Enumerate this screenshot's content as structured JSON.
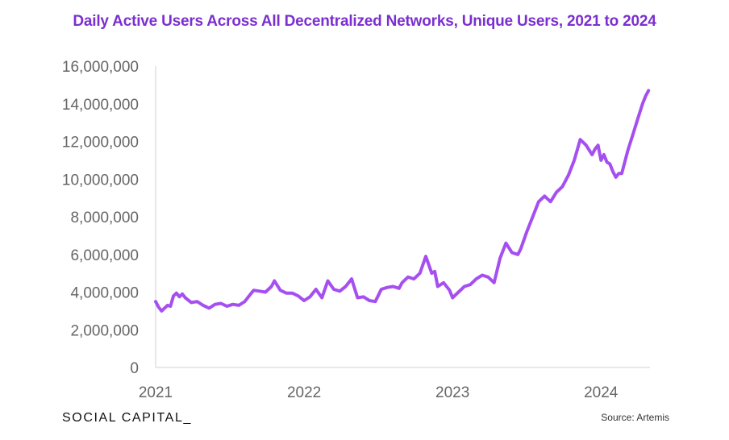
{
  "colors": {
    "accent": "#a64ff0",
    "title": "#7b2fd0",
    "axis": "#d0d0d0",
    "tick_text": "#666666"
  },
  "footer": {
    "brand": "SOCIAL CAPITAL_",
    "source": "Source: Artemis"
  },
  "chart_data": {
    "type": "line",
    "title": "Daily Active Users Across All Decentralized Networks, Unique Users, 2021 to 2024",
    "xlabel": "",
    "ylabel": "",
    "ylim": [
      0,
      16000000
    ],
    "xlim": [
      2021.0,
      2024.33
    ],
    "yticks": [
      0,
      2000000,
      4000000,
      6000000,
      8000000,
      10000000,
      12000000,
      14000000,
      16000000
    ],
    "ytick_labels": [
      "0",
      "2,000,000",
      "4,000,000",
      "6,000,000",
      "8,000,000",
      "10,000,000",
      "12,000,000",
      "14,000,000",
      "16,000,000"
    ],
    "xticks": [
      2021,
      2022,
      2023,
      2024
    ],
    "xtick_labels": [
      "2021",
      "2022",
      "2023",
      "2024"
    ],
    "grid": false,
    "series": [
      {
        "color": "#a64ff0",
        "x": [
          2021.0,
          2021.02,
          2021.04,
          2021.06,
          2021.08,
          2021.1,
          2021.12,
          2021.14,
          2021.16,
          2021.18,
          2021.2,
          2021.24,
          2021.28,
          2021.32,
          2021.36,
          2021.4,
          2021.44,
          2021.48,
          2021.52,
          2021.56,
          2021.6,
          2021.64,
          2021.66,
          2021.7,
          2021.74,
          2021.78,
          2021.8,
          2021.84,
          2021.88,
          2021.92,
          2021.96,
          2022.0,
          2022.04,
          2022.08,
          2022.12,
          2022.16,
          2022.2,
          2022.24,
          2022.28,
          2022.32,
          2022.36,
          2022.4,
          2022.44,
          2022.48,
          2022.52,
          2022.56,
          2022.6,
          2022.64,
          2022.66,
          2022.7,
          2022.74,
          2022.78,
          2022.82,
          2022.86,
          2022.88,
          2022.9,
          2022.94,
          2022.98,
          2023.0,
          2023.04,
          2023.08,
          2023.12,
          2023.16,
          2023.2,
          2023.24,
          2023.28,
          2023.32,
          2023.36,
          2023.4,
          2023.44,
          2023.46,
          2023.5,
          2023.54,
          2023.58,
          2023.62,
          2023.66,
          2023.7,
          2023.74,
          2023.78,
          2023.82,
          2023.86,
          2023.9,
          2023.94,
          2023.96,
          2023.98,
          2024.0,
          2024.02,
          2024.04,
          2024.06,
          2024.08,
          2024.1,
          2024.12,
          2024.14,
          2024.16,
          2024.18,
          2024.2,
          2024.22,
          2024.24,
          2024.26,
          2024.28,
          2024.3,
          2024.32
        ],
        "values": [
          3500000,
          3200000,
          3000000,
          3150000,
          3300000,
          3250000,
          3800000,
          3950000,
          3750000,
          3900000,
          3700000,
          3450000,
          3500000,
          3300000,
          3150000,
          3350000,
          3400000,
          3250000,
          3350000,
          3300000,
          3500000,
          3900000,
          4100000,
          4050000,
          4000000,
          4300000,
          4600000,
          4100000,
          3950000,
          3950000,
          3800000,
          3550000,
          3750000,
          4150000,
          3700000,
          4600000,
          4150000,
          4050000,
          4300000,
          4700000,
          3700000,
          3750000,
          3550000,
          3500000,
          4150000,
          4250000,
          4300000,
          4200000,
          4500000,
          4800000,
          4700000,
          5000000,
          5900000,
          5000000,
          5100000,
          4300000,
          4500000,
          4100000,
          3700000,
          4000000,
          4300000,
          4400000,
          4700000,
          4900000,
          4800000,
          4500000,
          5800000,
          6600000,
          6100000,
          6000000,
          6300000,
          7200000,
          8000000,
          8800000,
          9100000,
          8800000,
          9300000,
          9600000,
          10200000,
          11000000,
          12100000,
          11800000,
          11300000,
          11600000,
          11800000,
          11000000,
          11300000,
          10900000,
          10800000,
          10400000,
          10100000,
          10300000,
          10300000,
          10900000,
          11500000,
          12000000,
          12500000,
          13000000,
          13500000,
          14000000,
          14400000,
          14700000
        ]
      }
    ]
  }
}
